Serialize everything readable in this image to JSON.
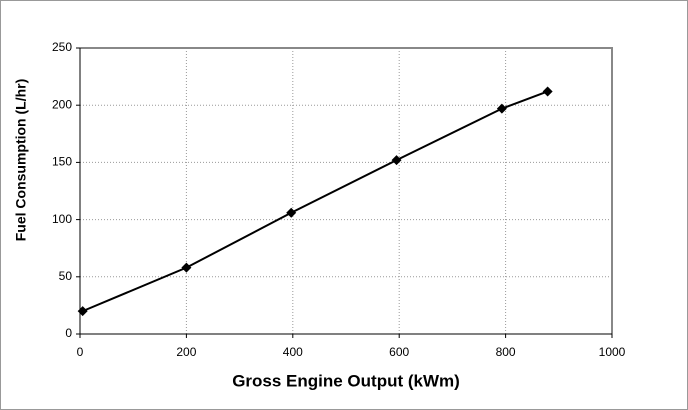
{
  "chart_data": {
    "type": "line",
    "x_label": "Gross Engine Output (kWm)",
    "y_label": "Fuel Consumption (L/hr)",
    "x": [
      5,
      200,
      397,
      595,
      793,
      879
    ],
    "series": [
      {
        "color": "#000000",
        "values": [
          20,
          58,
          106,
          152,
          197,
          212
        ]
      }
    ],
    "xlim": [
      0,
      1000
    ],
    "xticks": [
      0,
      200,
      400,
      600,
      800,
      1000
    ],
    "ylim": [
      0,
      250
    ],
    "yticks": [
      0,
      50,
      100,
      150,
      200,
      250
    ],
    "grid": true
  }
}
